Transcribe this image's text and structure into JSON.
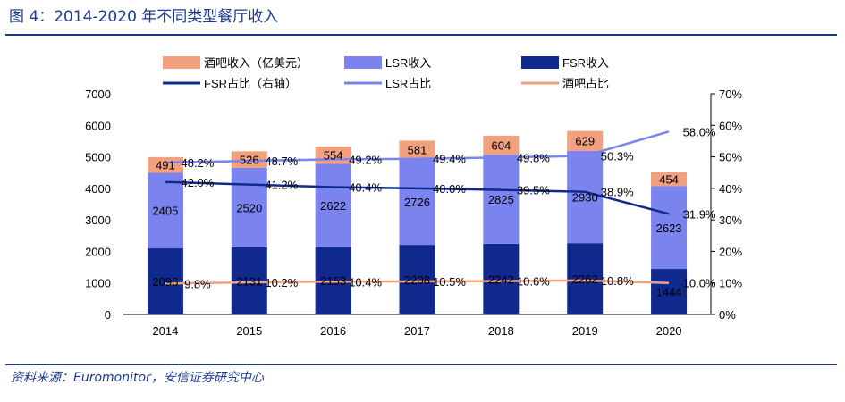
{
  "figure": {
    "title": "图 4：2014-2020 年不同类型餐厅收入",
    "source": "资料来源：Euromonitor，安信证券研究中心"
  },
  "chart_data": {
    "type": "bar",
    "stacked": true,
    "categories": [
      "2014",
      "2015",
      "2016",
      "2017",
      "2018",
      "2019",
      "2020"
    ],
    "series": [
      {
        "name": "FSR收入",
        "type": "bar",
        "axis": "left",
        "color": "#0f2a8c",
        "values": [
          2096,
          2131,
          2153,
          2208,
          2242,
          2262,
          1444
        ],
        "labels": [
          "2096",
          "2131",
          "2153",
          "2208",
          "2242",
          "2262",
          "1444"
        ]
      },
      {
        "name": "LSR收入",
        "type": "bar",
        "axis": "left",
        "color": "#7b83ef",
        "values": [
          2405,
          2520,
          2622,
          2726,
          2825,
          2930,
          2623
        ],
        "labels": [
          "2405",
          "2520",
          "2622",
          "2726",
          "2825",
          "2930",
          "2623"
        ]
      },
      {
        "name": "酒吧收入（亿美元）",
        "type": "bar",
        "axis": "left",
        "color": "#f2a07e",
        "values": [
          491,
          526,
          554,
          581,
          604,
          629,
          454
        ],
        "labels": [
          "491",
          "526",
          "554",
          "581",
          "604",
          "629",
          "454"
        ]
      },
      {
        "name": "FSR占比（右轴）",
        "type": "line",
        "axis": "right",
        "color": "#0f2a8c",
        "values": [
          42.0,
          41.2,
          40.4,
          40.0,
          39.5,
          38.9,
          31.9
        ],
        "labels": [
          "42.0%",
          "41.2%",
          "40.4%",
          "40.0%",
          "39.5%",
          "38.9%",
          "31.9%"
        ]
      },
      {
        "name": "LSR占比",
        "type": "line",
        "axis": "right",
        "color": "#7b83ef",
        "values": [
          48.2,
          48.7,
          49.2,
          49.4,
          49.8,
          50.3,
          58.0
        ],
        "labels": [
          "48.2%",
          "48.7%",
          "49.2%",
          "49.4%",
          "49.8%",
          "50.3%",
          "58.0%"
        ]
      },
      {
        "name": "酒吧占比",
        "type": "line",
        "axis": "right",
        "color": "#f2a07e",
        "values": [
          9.8,
          10.2,
          10.4,
          10.5,
          10.6,
          10.8,
          10.0
        ],
        "labels": [
          "9.8%",
          "10.2%",
          "10.4%",
          "10.5%",
          "10.6%",
          "10.8%",
          "10.0%"
        ]
      }
    ],
    "y_left": {
      "min": 0,
      "max": 7000,
      "ticks": [
        "0",
        "1000",
        "2000",
        "3000",
        "4000",
        "5000",
        "6000",
        "7000"
      ]
    },
    "y_right": {
      "min": 0,
      "max": 70,
      "ticks": [
        "0%",
        "10%",
        "20%",
        "30%",
        "40%",
        "50%",
        "60%",
        "70%"
      ]
    },
    "legend_position": "top",
    "grid": false
  }
}
